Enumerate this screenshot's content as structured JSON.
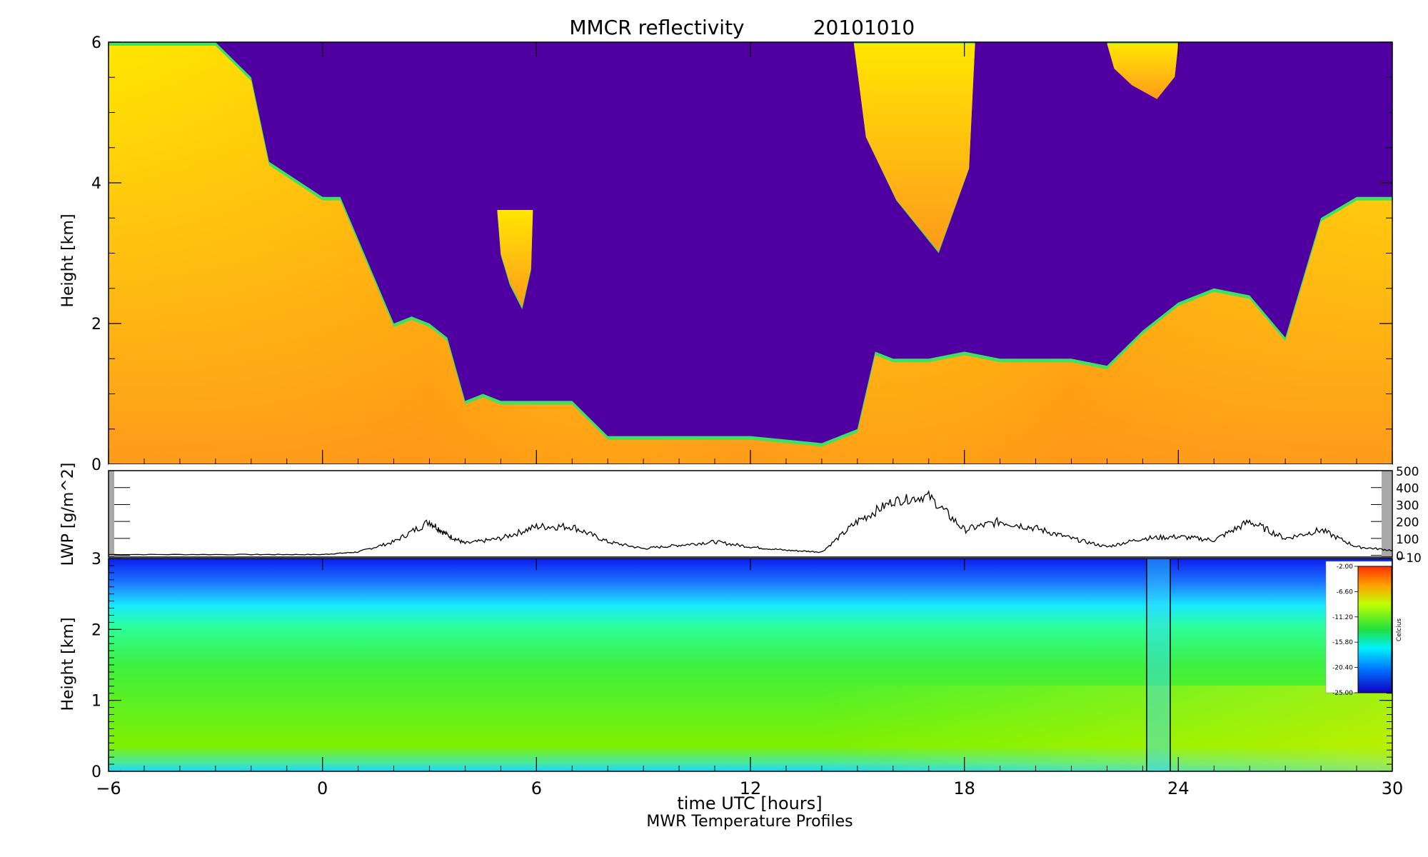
{
  "title": "MMCR reflectivity",
  "date": "20101010",
  "xlabel": "time UTC [hours]",
  "subtitle": "MWR Temperature Profiles",
  "colors": {
    "background": "#5000a0",
    "cloud_light": "#ffe600",
    "cloud_orange": "#ff9a1a",
    "cloud_edge": "#40e060",
    "lwp_line": "#000000"
  },
  "chart_data": [
    {
      "type": "heatmap",
      "title": "MMCR reflectivity",
      "ylabel": "Height [km]",
      "xlim": [
        -6,
        30
      ],
      "ylim": [
        0,
        6
      ],
      "xticks": [
        "−6",
        "0",
        "6",
        "12",
        "18",
        "24",
        "30"
      ],
      "yticks": [
        "0",
        "2",
        "4",
        "6"
      ],
      "cloud_top_km": {
        "x": [
          -6,
          -3,
          -2,
          -1.5,
          0,
          0.5,
          1,
          2,
          2.5,
          3,
          3.5,
          4,
          4.5,
          5,
          6,
          7,
          8,
          9,
          10,
          12,
          13,
          14,
          15,
          15.5,
          16,
          17,
          18,
          19,
          20,
          21,
          22,
          23,
          24,
          25,
          26,
          27,
          28,
          29,
          30
        ],
        "y": [
          6,
          6,
          5.5,
          4.3,
          3.8,
          3.8,
          3.2,
          2.0,
          2.1,
          2.0,
          1.8,
          0.9,
          1.0,
          0.9,
          0.9,
          0.9,
          0.4,
          0.4,
          0.4,
          0.4,
          0.35,
          0.3,
          0.5,
          1.6,
          1.5,
          1.5,
          1.6,
          1.5,
          1.5,
          1.5,
          1.4,
          1.9,
          2.3,
          2.5,
          2.4,
          1.8,
          3.5,
          3.8,
          3.8
        ]
      },
      "upper_clouds": [
        {
          "x_start": 14.9,
          "x_end": 18.3,
          "base_km": 3.0,
          "top_km": 6.0
        },
        {
          "x_start": 22.0,
          "x_end": 24.0,
          "base_km": 5.2,
          "top_km": 6.0
        },
        {
          "x_start": 4.9,
          "x_end": 5.9,
          "base_km": 2.2,
          "top_km": 3.6
        }
      ]
    },
    {
      "type": "line",
      "ylabel": "LWP [g/m^2]",
      "xlim": [
        -6,
        30
      ],
      "ylim": [
        -10,
        500
      ],
      "yticks": [
        "500",
        "400",
        "300",
        "200",
        "100",
        "0",
        "−10"
      ],
      "series": [
        {
          "x": [
            -6,
            -2,
            0,
            1,
            2,
            3,
            3.5,
            4,
            5,
            6,
            7,
            8,
            9,
            10,
            11,
            12,
            13,
            14,
            15,
            16,
            17,
            18,
            19,
            20,
            21,
            22,
            23,
            24,
            25,
            26,
            27,
            28,
            29,
            30
          ],
          "y": [
            5,
            5,
            5,
            20,
            80,
            200,
            120,
            70,
            100,
            170,
            170,
            80,
            40,
            60,
            80,
            50,
            30,
            20,
            200,
            320,
            350,
            150,
            200,
            160,
            100,
            50,
            100,
            110,
            90,
            200,
            100,
            150,
            50,
            30
          ]
        }
      ]
    },
    {
      "type": "heatmap",
      "ylabel": "Height [km]",
      "xlim": [
        -6,
        30
      ],
      "ylim": [
        0,
        3
      ],
      "yticks": [
        "0",
        "1",
        "2",
        "3"
      ],
      "colorbar": {
        "label": "Celcius",
        "ticks": [
          "-2.00",
          "-6.60",
          "-11.20",
          "-15.80",
          "-20.40",
          "-25.00"
        ]
      }
    }
  ]
}
